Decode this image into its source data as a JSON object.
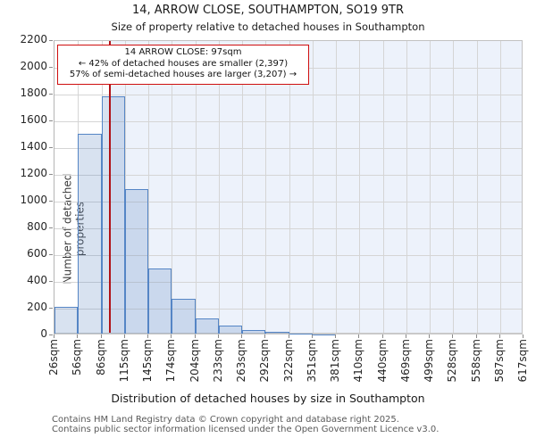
{
  "header": {
    "title": "14, ARROW CLOSE, SOUTHAMPTON, SO19 9TR",
    "subtitle": "Size of property relative to detached houses in Southampton"
  },
  "annotation": {
    "line1": "14 ARROW CLOSE: 97sqm",
    "line2": "← 42% of detached houses are smaller (2,397)",
    "line3": "57% of semi-detached houses are larger (3,207) →"
  },
  "chart_data": {
    "type": "bar",
    "title": "14, ARROW CLOSE, SOUTHAMPTON, SO19 9TR",
    "subtitle": "Size of property relative to detached houses in Southampton",
    "categories": [
      "26sqm",
      "56sqm",
      "86sqm",
      "115sqm",
      "145sqm",
      "174sqm",
      "204sqm",
      "233sqm",
      "263sqm",
      "292sqm",
      "322sqm",
      "351sqm",
      "381sqm",
      "410sqm",
      "440sqm",
      "469sqm",
      "499sqm",
      "528sqm",
      "558sqm",
      "587sqm",
      "617sqm"
    ],
    "bin_edges_sqm": [
      26,
      56,
      86,
      115,
      145,
      174,
      204,
      233,
      263,
      292,
      322,
      351,
      381,
      410,
      440,
      469,
      499,
      528,
      558,
      587,
      617
    ],
    "values": [
      215,
      1510,
      1790,
      1095,
      500,
      275,
      130,
      75,
      40,
      25,
      15,
      10,
      0,
      0,
      0,
      0,
      0,
      0,
      0,
      0
    ],
    "xlabel": "Distribution of detached houses by size in Southampton",
    "ylabel": "Number of detached properties",
    "ylim": [
      0,
      2200
    ],
    "yticks": [
      0,
      200,
      400,
      600,
      800,
      1000,
      1200,
      1400,
      1600,
      1800,
      2000,
      2200
    ],
    "grid": true,
    "legend": "none",
    "marker": {
      "value_sqm": 97,
      "smaller_pct": "42%",
      "smaller_count": "2,397",
      "larger_pct": "57%",
      "larger_count": "3,207"
    },
    "colors": {
      "bar_fill": "rgba(91,133,193,0.235)",
      "bar_edge": "#5585c5",
      "marker_line": "#b01218",
      "annotation_border": "#cf0f0f",
      "larger_region": "#edf2fb",
      "grid": "#d5d5d5"
    }
  },
  "footer": {
    "line1": "Contains HM Land Registry data © Crown copyright and database right 2025.",
    "line2": "Contains public sector information licensed under the Open Government Licence v3.0."
  }
}
